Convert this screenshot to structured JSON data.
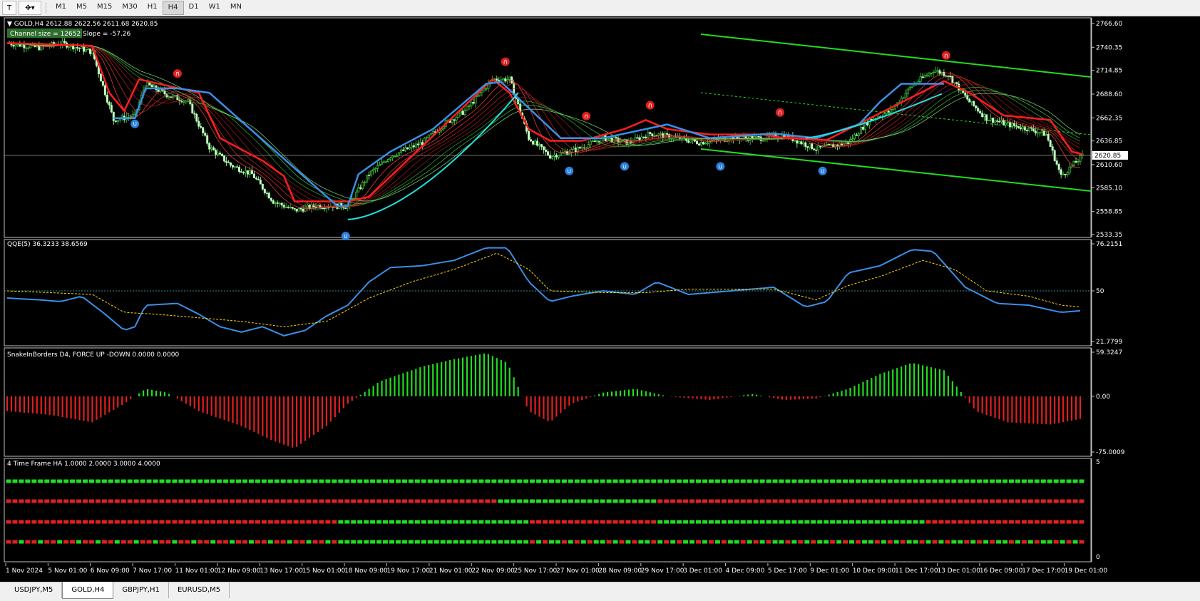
{
  "toolbar": {
    "timeframes": [
      "M1",
      "M5",
      "M15",
      "M30",
      "H1",
      "H4",
      "D1",
      "W1",
      "MN"
    ],
    "active_timeframe": "H4"
  },
  "main_chart": {
    "header": "GOLD,H4  2612.88 2622.56 2611.68 2620.85",
    "channel_info": "Channel size = 12652  Slope = -57.26",
    "price_ticks": [
      "2766.60",
      "2740.35",
      "2714.85",
      "2688.60",
      "2662.35",
      "2636.85",
      "2610.60",
      "2585.10",
      "2558.85",
      "2533.35"
    ],
    "current_price": "2620.85",
    "colors": {
      "bull": "#00c800",
      "bear": "#ff2020",
      "blue": "#3a8fe8",
      "cyan": "#20e0e0",
      "red_line": "#ff1e1e"
    }
  },
  "qqe": {
    "label": "QQE(5) 36.3233 38.6569",
    "ticks": [
      "76.2151",
      "50",
      "21.7799"
    ]
  },
  "snake": {
    "label": "SnakeInBorders D4, FORCE UP -DOWN  0.0000 0.0000",
    "ticks": [
      "59.3247",
      "0.00",
      "-75.0009"
    ]
  },
  "ha": {
    "label": "4 Time Frame HA 1.0000 2.0000 3.0000 4.0000",
    "ticks": [
      "5",
      "0"
    ]
  },
  "time_axis": [
    "1 Nov 2024",
    "5 Nov 01:00",
    "6 Nov 09:00",
    "7 Nov 17:00",
    "11 Nov 01:00",
    "12 Nov 09:00",
    "13 Nov 17:00",
    "15 Nov 01:00",
    "18 Nov 09:00",
    "19 Nov 17:00",
    "21 Nov 01:00",
    "22 Nov 09:00",
    "25 Nov 17:00",
    "27 Nov 01:00",
    "28 Nov 09:00",
    "29 Nov 17:00",
    "3 Dec 01:00",
    "4 Dec 09:00",
    "5 Dec 17:00",
    "9 Dec 01:00",
    "10 Dec 09:00",
    "11 Dec 17:00",
    "13 Dec 01:00",
    "16 Dec 09:00",
    "17 Dec 17:00",
    "19 Dec 01:00"
  ],
  "bottom_tabs": [
    "USDJPY,M5",
    "GOLD,H4",
    "GBPJPY,H1",
    "EURUSD,M5"
  ],
  "active_tab": "GOLD,H4"
}
